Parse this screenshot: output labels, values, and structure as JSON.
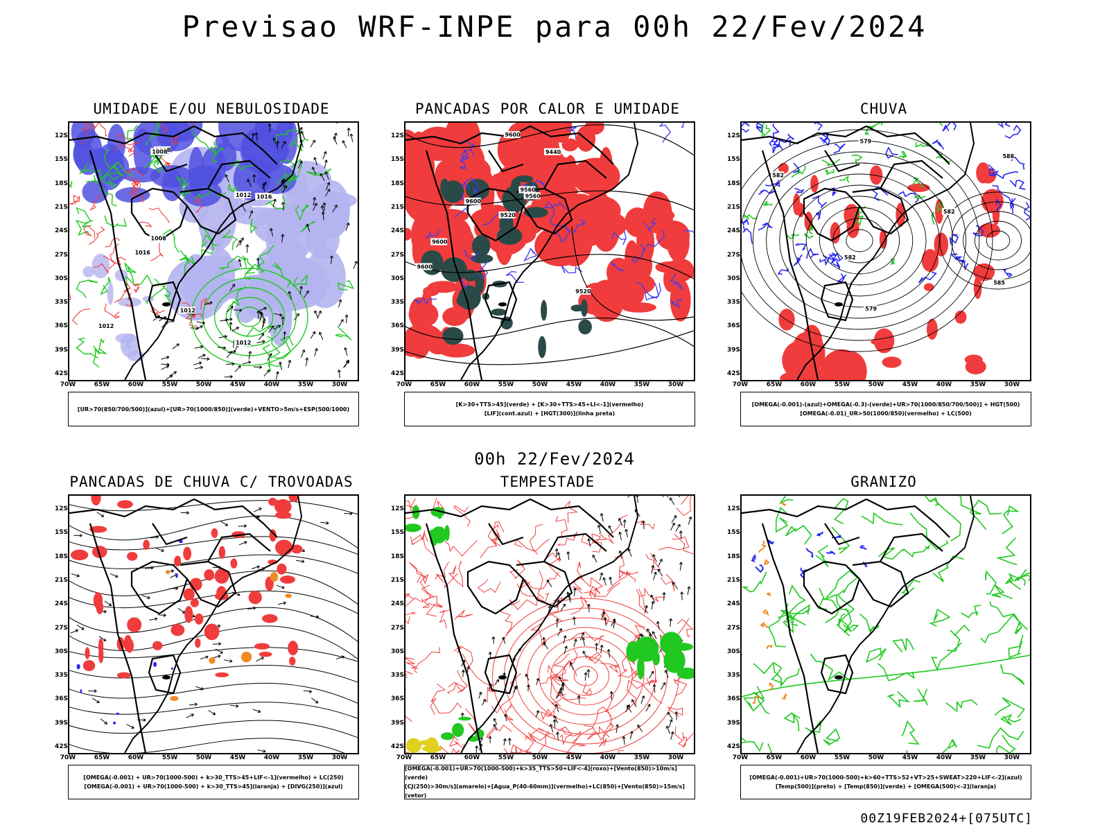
{
  "header": {
    "title": "Previsao WRF-INPE  para 00h 22/Fev/2024"
  },
  "middle": {
    "title": "00h 22/Fev/2024"
  },
  "footer": {
    "run": "00Z19FEB2024+[075UTC]"
  },
  "axes": {
    "lat_labels": [
      "12S",
      "15S",
      "18S",
      "21S",
      "24S",
      "27S",
      "30S",
      "33S",
      "36S",
      "39S",
      "42S"
    ],
    "lon_labels": [
      "70W",
      "65W",
      "60W",
      "55W",
      "50W",
      "45W",
      "40W",
      "35W",
      "30W"
    ]
  },
  "panels": [
    {
      "title": "UMIDADE E/OU NEBULOSIDADE",
      "legend": [
        "[UR>70(850/700/500)](azul)+[UR>70(1000/850)](verde)+VENTO>5m/s+ESP(500/1000)"
      ],
      "contour_labels": [
        "1012",
        "1012",
        "1008",
        "1008",
        "1016",
        "1012",
        "1008",
        "1012",
        "1016"
      ],
      "colors": {
        "blue": "#5050e0",
        "lightblue": "#b4b4f0",
        "green": "#20c820",
        "red": "#f03c3c"
      }
    },
    {
      "title": "PANCADAS POR CALOR E UMIDADE",
      "legend": [
        "[K>30+TTS>45](verde) + [K>30+TTS>45+LI<-1](vermelho)",
        "[LIF](cont.azul) + [HGT(300)](linha preta)"
      ],
      "contour_labels": [
        "9560",
        "9560",
        "9600",
        "9600",
        "9600",
        "9520",
        "9440",
        "9600",
        "9520"
      ],
      "colors": {
        "red": "#f03c3c",
        "dark": "#2a4a48",
        "blue": "#3c3cf0"
      }
    },
    {
      "title": "CHUVA",
      "legend": [
        "[OMEGA(-0.001)-(azul)+OMEGA(-0.3)-(verde)+UR>70(1000/850/700/500)] + HGT(500)",
        "[OMEGA(-0.01)_UR>50(1000/850)(vermelho) + LC(500)"
      ],
      "contour_labels": [
        "585",
        "582",
        "579",
        "582",
        "582",
        "579",
        "588"
      ],
      "colors": {
        "blue": "#2828f0",
        "green": "#20c820",
        "red": "#f03c3c"
      }
    },
    {
      "title": "PANCADAS DE CHUVA C/ TROVOADAS",
      "legend": [
        "[OMEGA(-0.001) + UR>70(1000-500) + k>30_TTS>45+LIF<-1](vermelho) + LC(250)",
        "[OMEGA(-0.001) + UR>70(1000-500) + k>30_TTS>45](laranja) + [DIVG(250)](azul)"
      ],
      "contour_labels": [],
      "colors": {
        "red": "#f03c3c",
        "orange": "#f08c28",
        "blue": "#2828f0"
      }
    },
    {
      "title": "TEMPESTADE",
      "legend": [
        "[OMEGA(-0.001)+UR>70(1000-500)+k>35_TTS>50+LIF<-4](roxo)+[Vento(850)>10m/s](verde)",
        "[CJ(250)>30m/s](amarelo)+[Agua_P(40-60mm)](vermelho)+LC(850)+[Vento(850)>15m/s](vetor)"
      ],
      "contour_labels": [],
      "colors": {
        "red": "#f03c3c",
        "green": "#20c820",
        "yellow": "#e0d020"
      }
    },
    {
      "title": "GRANIZO",
      "legend": [
        "[OMEGA(-0.001)+UR>70(1000-500)+k>60+TTS>52+VT>25+SWEAT>220+LIF<-2](azul)",
        "[Temp(500)](preto) + [Temp(850)](verde) + [OMEGA(500)<-2](laranja)"
      ],
      "contour_labels": [],
      "colors": {
        "green": "#20c820",
        "blue": "#2828f0",
        "orange": "#f08c28"
      }
    }
  ]
}
